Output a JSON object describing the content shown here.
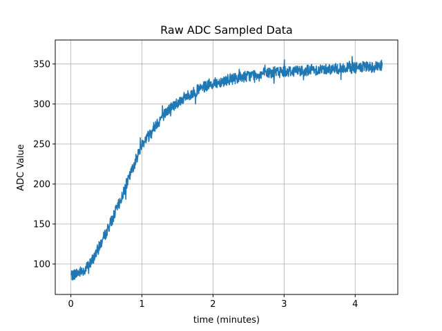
{
  "chart_data": {
    "type": "line",
    "title": "Raw ADC Sampled Data",
    "xlabel": "time (minutes)",
    "ylabel": "ADC Value",
    "xlim": [
      -0.22,
      4.6
    ],
    "ylim": [
      62,
      380
    ],
    "xticks": [
      0,
      1,
      2,
      3,
      4
    ],
    "yticks": [
      100,
      150,
      200,
      250,
      300,
      350
    ],
    "grid": true,
    "line_color": "#1f77b4",
    "series": [
      {
        "x": [
          0,
          0.1,
          0.2,
          0.3,
          0.4,
          0.5,
          0.6,
          0.7,
          0.8,
          0.9,
          1.0,
          1.1,
          1.2,
          1.3,
          1.4,
          1.5,
          1.6,
          1.7,
          1.8,
          1.9,
          2.0,
          2.1,
          2.2,
          2.3,
          2.4,
          2.5,
          2.6,
          2.7,
          2.8,
          2.9,
          3.0,
          3.1,
          3.2,
          3.3,
          3.4,
          3.5,
          3.6,
          3.7,
          3.8,
          3.9,
          4.0,
          4.1,
          4.2,
          4.3,
          4.38
        ],
        "values": [
          86,
          89,
          93,
          104,
          122,
          140,
          160,
          180,
          203,
          227,
          250,
          262,
          275,
          286,
          295,
          302,
          308,
          313,
          318,
          322,
          325,
          328,
          330,
          332,
          334,
          335,
          337,
          338,
          339,
          340,
          341,
          341,
          342,
          342,
          343,
          343,
          344,
          344,
          344,
          345,
          345,
          346,
          346,
          347,
          348
        ]
      }
    ]
  }
}
